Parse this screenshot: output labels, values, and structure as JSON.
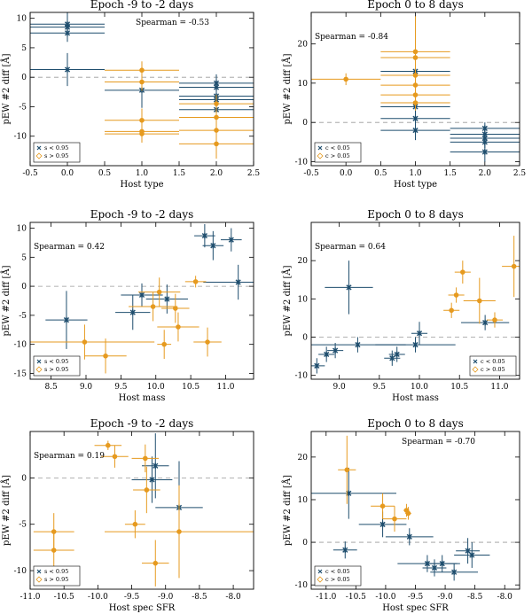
{
  "figure": {
    "colors": {
      "blue": "#1f4e6e",
      "orange": "#e69a1f",
      "zero_line": "#9a9a9a"
    }
  },
  "chart_data": [
    {
      "id": "p1",
      "type": "scatter",
      "title": "Epoch -9 to -2 days",
      "xlabel": "Host type",
      "ylabel": "pEW #2 diff [Å]",
      "xlim": [
        -0.5,
        2.5
      ],
      "ylim": [
        -15,
        11
      ],
      "xticks": [
        "-0.5",
        "0.0",
        "0.5",
        "1.0",
        "1.5",
        "2.0",
        "2.5"
      ],
      "yticks": [
        "-10",
        "-5",
        "0",
        "5",
        "10"
      ],
      "annotation": "Spearman = -0.53",
      "annotation_pos": "top-right",
      "legend": [
        "s < 0.95",
        "s > 0.95"
      ],
      "legend_pos": "bottom-left",
      "series": [
        {
          "name": "s < 0.95",
          "color": "blue",
          "points": [
            {
              "x": 0,
              "y": 9.0,
              "xerr": 0.5,
              "yerr": 2.0
            },
            {
              "x": 0,
              "y": 8.5,
              "xerr": 0.5,
              "yerr": 1.2
            },
            {
              "x": 0,
              "y": 7.5,
              "xerr": 0.5,
              "yerr": 1.5
            },
            {
              "x": 0,
              "y": 1.3,
              "xerr": 0.5,
              "yerr": 2.8
            },
            {
              "x": 1,
              "y": -2.2,
              "xerr": 0.5,
              "yerr": 3.0
            },
            {
              "x": 2,
              "y": -1.0,
              "xerr": 0.5,
              "yerr": 1.5
            },
            {
              "x": 2,
              "y": -1.7,
              "xerr": 0.5,
              "yerr": 1.5
            },
            {
              "x": 2,
              "y": -3.2,
              "xerr": 0.5,
              "yerr": 1.5
            },
            {
              "x": 2,
              "y": -3.8,
              "xerr": 0.5,
              "yerr": 1.5
            },
            {
              "x": 2,
              "y": -5.5,
              "xerr": 0.5,
              "yerr": 2.5
            }
          ]
        },
        {
          "name": "s > 0.95",
          "color": "orange",
          "points": [
            {
              "x": 1,
              "y": 1.2,
              "xerr": 0.5,
              "yerr": 1.5
            },
            {
              "x": 1,
              "y": -0.8,
              "xerr": 0.5,
              "yerr": 1.5
            },
            {
              "x": 1,
              "y": -7.3,
              "xerr": 0.5,
              "yerr": 2.0
            },
            {
              "x": 1,
              "y": -9.2,
              "xerr": 0.5,
              "yerr": 1.5
            },
            {
              "x": 1,
              "y": -9.6,
              "xerr": 0.5,
              "yerr": 1.5
            },
            {
              "x": 2,
              "y": -4.5,
              "xerr": 0.5,
              "yerr": 1.5
            },
            {
              "x": 2,
              "y": -6.8,
              "xerr": 0.5,
              "yerr": 1.5
            },
            {
              "x": 2,
              "y": -9.0,
              "xerr": 0.5,
              "yerr": 1.5
            },
            {
              "x": 2,
              "y": -11.3,
              "xerr": 0.5,
              "yerr": 2.5
            }
          ]
        }
      ]
    },
    {
      "id": "p2",
      "type": "scatter",
      "title": "Epoch 0 to 8 days",
      "xlabel": "Host type",
      "ylabel": "pEW #2 diff [Å]",
      "xlim": [
        -0.5,
        2.5
      ],
      "ylim": [
        -11,
        28
      ],
      "xticks": [
        "-0.5",
        "0.0",
        "0.5",
        "1.0",
        "1.5",
        "2.0",
        "2.5"
      ],
      "yticks": [
        "-10",
        "0",
        "10",
        "20"
      ],
      "annotation": "Spearman = -0.84",
      "annotation_pos": "top-left",
      "legend": [
        "c < 0.05",
        "c > 0.05"
      ],
      "legend_pos": "bottom-left",
      "series": [
        {
          "name": "c < 0.05",
          "color": "blue",
          "points": [
            {
              "x": 1,
              "y": 13.0,
              "xerr": 0.5,
              "yerr": 6.0
            },
            {
              "x": 1,
              "y": 4.0,
              "xerr": 0.5,
              "yerr": 2.5
            },
            {
              "x": 1,
              "y": 1.0,
              "xerr": 0.5,
              "yerr": 2.5
            },
            {
              "x": 1,
              "y": -2.0,
              "xerr": 0.5,
              "yerr": 2.5
            },
            {
              "x": 2,
              "y": -1.5,
              "xerr": 0.5,
              "yerr": 1.5
            },
            {
              "x": 2,
              "y": -3.0,
              "xerr": 0.5,
              "yerr": 1.5
            },
            {
              "x": 2,
              "y": -4.0,
              "xerr": 0.5,
              "yerr": 1.5
            },
            {
              "x": 2,
              "y": -5.0,
              "xerr": 0.5,
              "yerr": 1.5
            },
            {
              "x": 2,
              "y": -7.5,
              "xerr": 0.5,
              "yerr": 2.5
            }
          ]
        },
        {
          "name": "c > 0.05",
          "color": "orange",
          "points": [
            {
              "x": 0,
              "y": 11.0,
              "xerr": 0.5,
              "yerr": 1.5
            },
            {
              "x": 1,
              "y": 18.0,
              "xerr": 0.5,
              "yerr": 9.0
            },
            {
              "x": 1,
              "y": 16.5,
              "xerr": 0.5,
              "yerr": 2.0
            },
            {
              "x": 1,
              "y": 12.0,
              "xerr": 0.5,
              "yerr": 2.0
            },
            {
              "x": 1,
              "y": 9.5,
              "xerr": 0.5,
              "yerr": 2.0
            },
            {
              "x": 1,
              "y": 7.0,
              "xerr": 0.5,
              "yerr": 2.0
            },
            {
              "x": 1,
              "y": 5.0,
              "xerr": 0.5,
              "yerr": 2.0
            }
          ]
        }
      ]
    },
    {
      "id": "p3",
      "type": "scatter",
      "title": "Epoch -9 to -2 days",
      "xlabel": "Host mass",
      "ylabel": "pEW #2 diff [Å]",
      "xlim": [
        8.2,
        11.4
      ],
      "ylim": [
        -16,
        11
      ],
      "xticks": [
        "8.5",
        "9.0",
        "9.5",
        "10.0",
        "10.5",
        "11.0"
      ],
      "yticks": [
        "-15",
        "-10",
        "-5",
        "0",
        "5",
        "10"
      ],
      "annotation": "Spearman = 0.42",
      "annotation_pos": "top-left",
      "legend": [
        "s < 0.95",
        "s > 0.95"
      ],
      "legend_pos": "bottom-left",
      "series": [
        {
          "name": "s < 0.95",
          "color": "blue",
          "points": [
            {
              "x": 8.72,
              "y": -5.8,
              "xerr": 0.3,
              "yerr": 5.0
            },
            {
              "x": 9.67,
              "y": -4.5,
              "xerr": 0.25,
              "yerr": 3.0
            },
            {
              "x": 9.8,
              "y": -1.5,
              "xerr": 0.3,
              "yerr": 2.0
            },
            {
              "x": 10.16,
              "y": -2.2,
              "xerr": 0.3,
              "yerr": 2.5
            },
            {
              "x": 10.7,
              "y": 8.7,
              "xerr": 0.15,
              "yerr": 2.0
            },
            {
              "x": 10.82,
              "y": 7.0,
              "xerr": 0.15,
              "yerr": 2.5
            },
            {
              "x": 11.08,
              "y": 8.0,
              "xerr": 0.15,
              "yerr": 2.0
            },
            {
              "x": 11.18,
              "y": 0.7,
              "xerr": 0.5,
              "yerr": 3.0
            }
          ]
        },
        {
          "name": "s > 0.95",
          "color": "orange",
          "points": [
            {
              "x": 8.98,
              "y": -9.6,
              "xerr": 1.0,
              "yerr": 3.0
            },
            {
              "x": 9.28,
              "y": -12.0,
              "xerr": 0.3,
              "yerr": 3.0
            },
            {
              "x": 9.96,
              "y": -3.5,
              "xerr": 0.35,
              "yerr": 2.5
            },
            {
              "x": 10.05,
              "y": -1.0,
              "xerr": 0.3,
              "yerr": 2.5
            },
            {
              "x": 10.12,
              "y": -10.0,
              "xerr": 0.1,
              "yerr": 2.5
            },
            {
              "x": 10.28,
              "y": -3.8,
              "xerr": 0.2,
              "yerr": 2.5
            },
            {
              "x": 10.32,
              "y": -7.0,
              "xerr": 0.3,
              "yerr": 2.5
            },
            {
              "x": 10.57,
              "y": 0.8,
              "xerr": 0.15,
              "yerr": 1.0
            },
            {
              "x": 10.74,
              "y": -9.6,
              "xerr": 0.2,
              "yerr": 2.5
            }
          ]
        }
      ]
    },
    {
      "id": "p4",
      "type": "scatter",
      "title": "Epoch 0 to 8 days",
      "xlabel": "Host mass",
      "ylabel": "pEW #2 diff [Å]",
      "xlim": [
        8.65,
        11.25
      ],
      "ylim": [
        -11,
        30
      ],
      "xticks": [
        "9.0",
        "9.5",
        "10.0",
        "10.5",
        "11.0"
      ],
      "yticks": [
        "-10",
        "0",
        "10",
        "20"
      ],
      "annotation": "Spearman = 0.64",
      "annotation_pos": "top-left",
      "legend": [
        "c < 0.05",
        "c > 0.05"
      ],
      "legend_pos": "bottom-right",
      "series": [
        {
          "name": "c < 0.05",
          "color": "blue",
          "points": [
            {
              "x": 8.72,
              "y": -7.5,
              "xerr": 0.1,
              "yerr": 2.0
            },
            {
              "x": 8.84,
              "y": -4.5,
              "xerr": 0.1,
              "yerr": 2.0
            },
            {
              "x": 8.95,
              "y": -3.5,
              "xerr": 0.1,
              "yerr": 2.0
            },
            {
              "x": 9.12,
              "y": 13.0,
              "xerr": 0.3,
              "yerr": 7.0
            },
            {
              "x": 9.23,
              "y": -2.0,
              "xerr": 0.6,
              "yerr": 2.0
            },
            {
              "x": 9.66,
              "y": -5.5,
              "xerr": 0.1,
              "yerr": 2.0
            },
            {
              "x": 9.72,
              "y": -4.5,
              "xerr": 0.1,
              "yerr": 2.0
            },
            {
              "x": 9.95,
              "y": -2.0,
              "xerr": 0.5,
              "yerr": 2.0
            },
            {
              "x": 10.0,
              "y": 1.0,
              "xerr": 0.1,
              "yerr": 3.0
            },
            {
              "x": 10.82,
              "y": 3.8,
              "xerr": 0.3,
              "yerr": 2.0
            }
          ]
        },
        {
          "name": "c > 0.05",
          "color": "orange",
          "points": [
            {
              "x": 10.4,
              "y": 7.0,
              "xerr": 0.1,
              "yerr": 2.0
            },
            {
              "x": 10.46,
              "y": 11.0,
              "xerr": 0.1,
              "yerr": 2.0
            },
            {
              "x": 10.54,
              "y": 17.0,
              "xerr": 0.1,
              "yerr": 3.0
            },
            {
              "x": 10.75,
              "y": 9.5,
              "xerr": 0.2,
              "yerr": 6.0
            },
            {
              "x": 10.94,
              "y": 4.5,
              "xerr": 0.1,
              "yerr": 2.0
            },
            {
              "x": 11.18,
              "y": 18.5,
              "xerr": 0.15,
              "yerr": 8.0
            }
          ]
        }
      ]
    },
    {
      "id": "p5",
      "type": "scatter",
      "title": "Epoch -9 to -2 days",
      "xlabel": "Host spec SFR",
      "ylabel": "pEW #2 diff [Å]",
      "xlim": [
        -11.0,
        -7.7
      ],
      "ylim": [
        -12,
        5
      ],
      "xticks": [
        "-11.0",
        "-10.5",
        "-10.0",
        "-9.5",
        "-9.0",
        "-8.5",
        "-8.0"
      ],
      "yticks": [
        "-10",
        "-5",
        "0"
      ],
      "annotation": "Spearman = 0.19",
      "annotation_pos": "top-left",
      "legend": [
        "s < 0.95",
        "s > 0.95"
      ],
      "legend_pos": "bottom-left",
      "series": [
        {
          "name": "s < 0.95",
          "color": "blue",
          "points": [
            {
              "x": -9.2,
              "y": -0.2,
              "xerr": 0.3,
              "yerr": 2.5
            },
            {
              "x": -9.15,
              "y": 1.3,
              "xerr": 0.2,
              "yerr": 3.5
            },
            {
              "x": -8.8,
              "y": -3.2,
              "xerr": 0.35,
              "yerr": 5.0
            }
          ]
        },
        {
          "name": "s > 0.95",
          "color": "orange",
          "points": [
            {
              "x": -10.65,
              "y": -5.8,
              "xerr": 0.3,
              "yerr": 2.0
            },
            {
              "x": -10.65,
              "y": -7.8,
              "xerr": 0.3,
              "yerr": 2.0
            },
            {
              "x": -9.85,
              "y": 3.5,
              "xerr": 0.2,
              "yerr": 0.5
            },
            {
              "x": -9.75,
              "y": 2.3,
              "xerr": 0.2,
              "yerr": 1.2
            },
            {
              "x": -9.45,
              "y": -5.0,
              "xerr": 0.15,
              "yerr": 1.5
            },
            {
              "x": -9.3,
              "y": 2.1,
              "xerr": 0.2,
              "yerr": 1.5
            },
            {
              "x": -9.28,
              "y": -1.3,
              "xerr": 0.2,
              "yerr": 2.5
            },
            {
              "x": -9.15,
              "y": -9.2,
              "xerr": 0.2,
              "yerr": 2.5
            },
            {
              "x": -8.8,
              "y": -5.8,
              "xerr": 1.1,
              "yerr": 5.0
            }
          ]
        }
      ]
    },
    {
      "id": "p6",
      "type": "scatter",
      "title": "Epoch 0 to 8 days",
      "xlabel": "Host spec SFR",
      "ylabel": "pEW #2 diff [Å]",
      "xlim": [
        -11.25,
        -7.75
      ],
      "ylim": [
        -11,
        26
      ],
      "xticks": [
        "-11.0",
        "-10.5",
        "-10.0",
        "-9.5",
        "-9.0",
        "-8.5",
        "-8.0"
      ],
      "yticks": [
        "-10",
        "0",
        "10",
        "20"
      ],
      "annotation": "Spearman = -0.70",
      "annotation_pos": "top-right",
      "legend": [
        "c < 0.05",
        "c > 0.05"
      ],
      "legend_pos": "bottom-left",
      "series": [
        {
          "name": "c < 0.05",
          "color": "blue",
          "points": [
            {
              "x": -10.62,
              "y": 11.5,
              "xerr": 0.8,
              "yerr": 6.0
            },
            {
              "x": -10.68,
              "y": -1.8,
              "xerr": 0.2,
              "yerr": 2.0
            },
            {
              "x": -10.05,
              "y": 4.2,
              "xerr": 0.4,
              "yerr": 3.0
            },
            {
              "x": -9.6,
              "y": 1.3,
              "xerr": 0.4,
              "yerr": 2.0
            },
            {
              "x": -9.3,
              "y": -5.0,
              "xerr": 0.5,
              "yerr": 2.0
            },
            {
              "x": -9.18,
              "y": -6.0,
              "xerr": 0.2,
              "yerr": 2.0
            },
            {
              "x": -9.05,
              "y": -5.0,
              "xerr": 0.3,
              "yerr": 2.0
            },
            {
              "x": -8.85,
              "y": -7.0,
              "xerr": 0.4,
              "yerr": 2.0
            },
            {
              "x": -8.62,
              "y": -2.0,
              "xerr": 0.2,
              "yerr": 3.0
            },
            {
              "x": -8.55,
              "y": -3.0,
              "xerr": 0.3,
              "yerr": 3.0
            }
          ]
        },
        {
          "name": "c > 0.05",
          "color": "orange",
          "points": [
            {
              "x": -10.65,
              "y": 17.0,
              "xerr": 0.15,
              "yerr": 8.0
            },
            {
              "x": -10.05,
              "y": 8.5,
              "xerr": 0.2,
              "yerr": 3.0
            },
            {
              "x": -9.85,
              "y": 5.5,
              "xerr": 0.2,
              "yerr": 3.0
            },
            {
              "x": -9.65,
              "y": 7.5,
              "xerr": 0.05,
              "yerr": 1.5
            },
            {
              "x": -9.62,
              "y": 6.8,
              "xerr": 0.05,
              "yerr": 1.5
            }
          ]
        }
      ]
    }
  ]
}
